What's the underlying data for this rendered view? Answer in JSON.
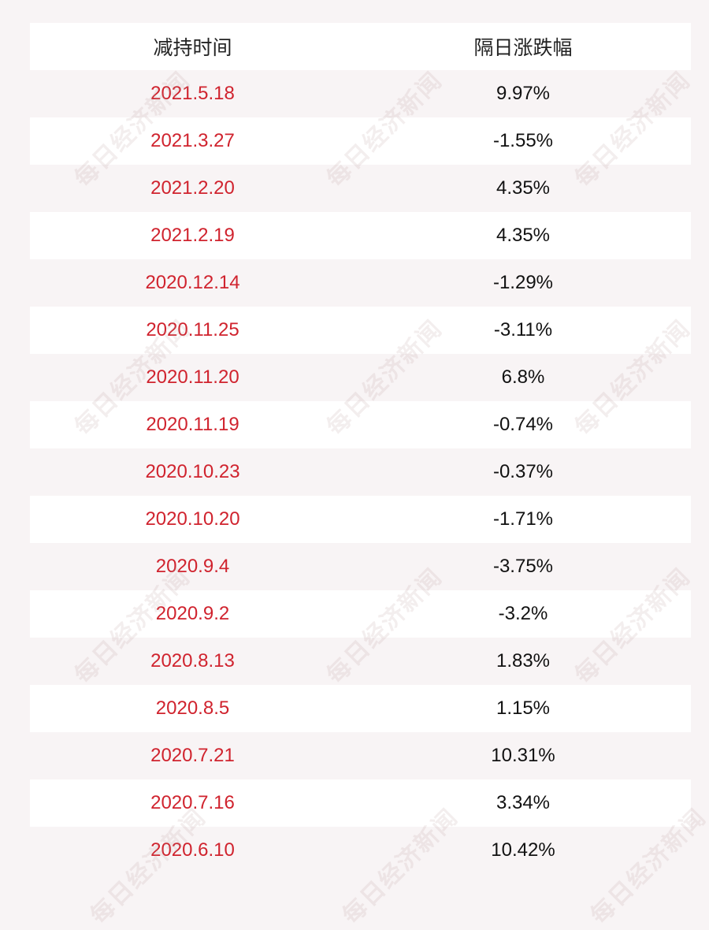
{
  "header": {
    "col1": "减持时间",
    "col2": "隔日涨跌幅"
  },
  "rows": [
    {
      "date": "2021.5.18",
      "change": "9.97%"
    },
    {
      "date": "2021.3.27",
      "change": "-1.55%"
    },
    {
      "date": "2021.2.20",
      "change": "4.35%"
    },
    {
      "date": "2021.2.19",
      "change": "4.35%"
    },
    {
      "date": "2020.12.14",
      "change": "-1.29%"
    },
    {
      "date": "2020.11.25",
      "change": "-3.11%"
    },
    {
      "date": "2020.11.20",
      "change": "6.8%"
    },
    {
      "date": "2020.11.19",
      "change": "-0.74%"
    },
    {
      "date": "2020.10.23",
      "change": "-0.37%"
    },
    {
      "date": "2020.10.20",
      "change": "-1.71%"
    },
    {
      "date": "2020.9.4",
      "change": "-3.75%"
    },
    {
      "date": "2020.9.2",
      "change": "-3.2%"
    },
    {
      "date": "2020.8.13",
      "change": "1.83%"
    },
    {
      "date": "2020.8.5",
      "change": "1.15%"
    },
    {
      "date": "2020.7.21",
      "change": "10.31%"
    },
    {
      "date": "2020.7.16",
      "change": "3.34%"
    },
    {
      "date": "2020.6.10",
      "change": "10.42%"
    }
  ],
  "watermark": "每日经济新闻",
  "colors": {
    "date_text": "#d0232e",
    "value_text": "#111111",
    "row_white": "#ffffff",
    "row_tinted": "#f8f4f5"
  }
}
